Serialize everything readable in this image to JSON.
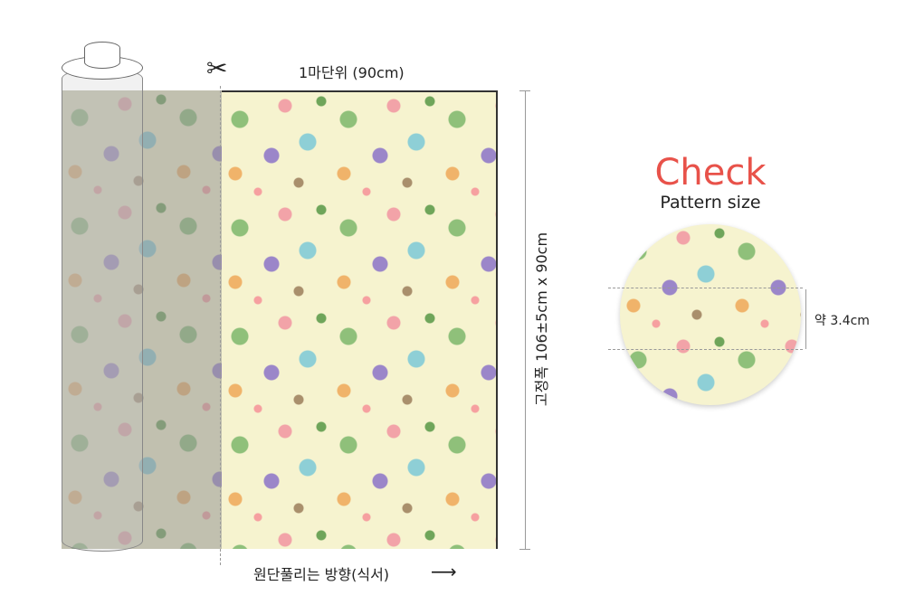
{
  "diagram": {
    "cut_unit_label": "1마단위 (90cm)",
    "fabric_size_label": "고정폭 106±5cm x 90cm",
    "direction_label": "원단풀리는 방향(식서)",
    "scissors_icon": "scissors-icon",
    "arrow_icon": "arrow-right-icon"
  },
  "pattern_check": {
    "title": "Check",
    "subtitle": "Pattern size",
    "repeat_label": "약 3.4cm",
    "title_color": "#e8524a",
    "fabric_color": "#f6f3cf"
  }
}
